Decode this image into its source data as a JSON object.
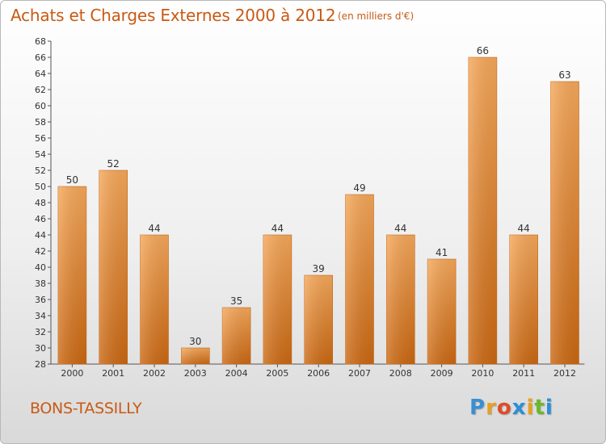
{
  "header": {
    "title": "Achats et Charges Externes 2000 à 2012",
    "subtitle": "(en milliers d'€)"
  },
  "footer": {
    "commune": "BONS-TASSILLY",
    "logo": {
      "letters": [
        "P",
        "r",
        "o",
        "x",
        "i",
        "t",
        "i"
      ],
      "colors": [
        "#3a8fd4",
        "#e8a020",
        "#e04a2a",
        "#2a8fd8",
        "#e8a020",
        "#6bb82a",
        "#2a8fd8"
      ]
    }
  },
  "chart_data": {
    "type": "bar",
    "title": "Achats et Charges Externes 2000 à 2012",
    "subtitle": "(en milliers d'€)",
    "categories": [
      "2000",
      "2001",
      "2002",
      "2003",
      "2004",
      "2005",
      "2006",
      "2007",
      "2008",
      "2009",
      "2010",
      "2011",
      "2012"
    ],
    "values": [
      50,
      52,
      44,
      30,
      35,
      44,
      39,
      49,
      44,
      41,
      66,
      44,
      63
    ],
    "value_labels": [
      "50",
      "52",
      "44",
      "30",
      "35",
      "44",
      "39",
      "49",
      "44",
      "41",
      "66",
      "44",
      "63"
    ],
    "ylim": [
      28,
      68
    ],
    "yticks": [
      "28",
      "30",
      "32",
      "34",
      "36",
      "38",
      "40",
      "42",
      "44",
      "46",
      "48",
      "50",
      "52",
      "54",
      "56",
      "58",
      "60",
      "62",
      "64",
      "66",
      "68"
    ],
    "grid": false,
    "bar_color": "#f0a050",
    "bar_color_dark": "#cd6a14"
  }
}
